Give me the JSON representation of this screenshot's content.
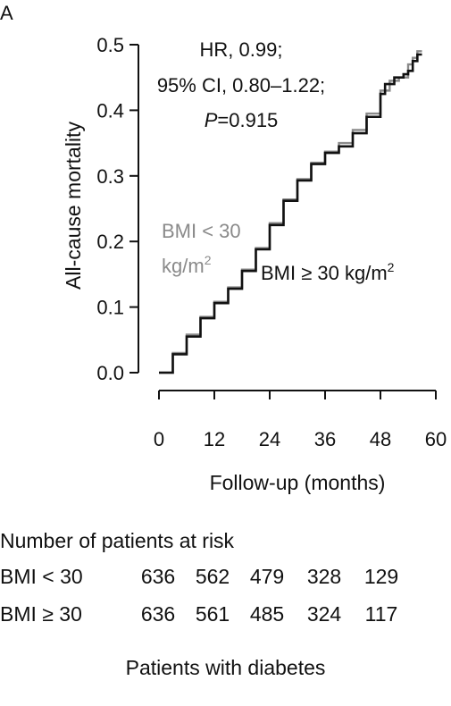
{
  "panel_label": "A",
  "chart_data": {
    "type": "line",
    "ylabel": "All-cause mortality",
    "xlabel": "Follow-up (months)",
    "xlim": [
      0,
      60
    ],
    "ylim": [
      0,
      0.5
    ],
    "xticks": [
      "0",
      "12",
      "24",
      "36",
      "48",
      "60"
    ],
    "yticks": [
      "0.0",
      "0.1",
      "0.2",
      "0.3",
      "0.4",
      "0.5"
    ],
    "annotation": {
      "line1": "HR, 0.99;",
      "line2": "95% CI, 0.80–1.22;",
      "p_label": "P",
      "p_value": "=0.915"
    },
    "series": [
      {
        "name": "BMI < 30 kg/m2",
        "label_line1": "BMI < 30",
        "label_line2": "kg/m",
        "label_sup": "2",
        "color": "#8a8a8a",
        "x": [
          0,
          3,
          6,
          9,
          12,
          15,
          18,
          21,
          24,
          27,
          30,
          33,
          36,
          39,
          42,
          45,
          48,
          50,
          52,
          54,
          55,
          56,
          57
        ],
        "y": [
          0,
          0.03,
          0.058,
          0.085,
          0.108,
          0.13,
          0.157,
          0.19,
          0.228,
          0.264,
          0.295,
          0.32,
          0.337,
          0.35,
          0.37,
          0.395,
          0.43,
          0.445,
          0.45,
          0.47,
          0.48,
          0.49,
          0.49
        ]
      },
      {
        "name": "BMI ≥ 30 kg/m2",
        "label_text": "BMI ≥ 30 kg/m",
        "label_sup": "2",
        "color": "#111111",
        "x": [
          0,
          3,
          6,
          9,
          12,
          15,
          18,
          21,
          24,
          27,
          30,
          33,
          36,
          39,
          42,
          45,
          48,
          49,
          51,
          53,
          54,
          55,
          56,
          57
        ],
        "y": [
          0,
          0.028,
          0.055,
          0.083,
          0.106,
          0.128,
          0.155,
          0.188,
          0.225,
          0.262,
          0.293,
          0.318,
          0.335,
          0.345,
          0.365,
          0.39,
          0.425,
          0.44,
          0.45,
          0.455,
          0.46,
          0.475,
          0.485,
          0.485
        ]
      }
    ]
  },
  "risk_table": {
    "title": "Number of patients at risk",
    "rows": [
      {
        "label": "BMI < 30",
        "values": [
          "636",
          "562",
          "479",
          "328",
          "129"
        ]
      },
      {
        "label": "BMI ≥ 30",
        "values": [
          "636",
          "561",
          "485",
          "324",
          "117"
        ]
      }
    ]
  },
  "footer": "Patients with diabetes"
}
